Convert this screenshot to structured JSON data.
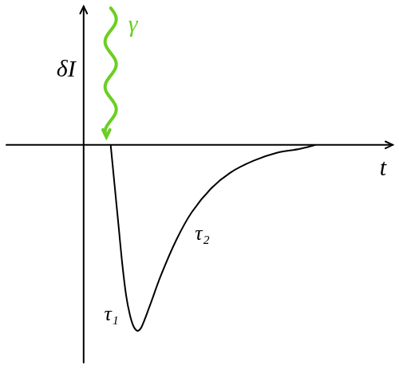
{
  "chart_data": {
    "type": "line",
    "x_label": "t",
    "y_label": "δI",
    "x": [
      7,
      8,
      9,
      10,
      11,
      12,
      13,
      14,
      15,
      17,
      20,
      24,
      28,
      33,
      38,
      44,
      50,
      56,
      60
    ],
    "values": [
      0,
      -10,
      -20,
      -30,
      -38,
      -43,
      -46,
      -47,
      -46,
      -41,
      -33,
      -24,
      -17,
      -11,
      -7,
      -4,
      -2,
      -1,
      0
    ],
    "color": "#000000",
    "xlim": [
      -20,
      80
    ],
    "ylim": [
      -55,
      35
    ],
    "xticks": [],
    "yticks": [],
    "grid": false,
    "tick_labels": false,
    "annotations": [
      "γ",
      "τ₁",
      "τ₂"
    ]
  }
}
